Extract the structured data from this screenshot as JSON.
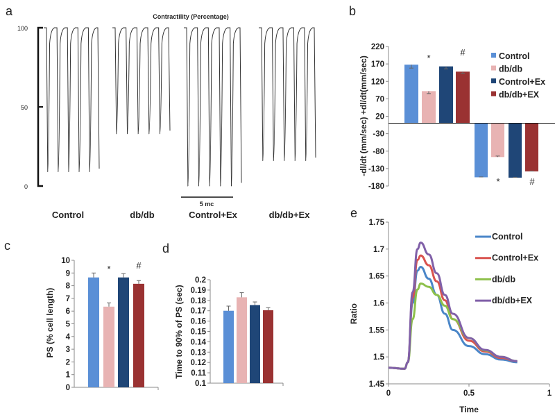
{
  "panels": {
    "a": "a",
    "b": "b",
    "c": "c",
    "d": "d",
    "e": "e"
  },
  "colors": {
    "control": "#5a8fd6",
    "dbdb": "#e8b3b3",
    "control_ex": "#1f4677",
    "dbdb_ex": "#9a3232"
  },
  "chart_data": [
    {
      "id": "a",
      "type": "line",
      "title": "Contractility  (Percentage)",
      "yticks": [
        "100",
        "50",
        "0"
      ],
      "ylim": [
        0,
        100
      ],
      "scale_bar": "5 mc",
      "groups": [
        {
          "name": "Control",
          "min_percent": 9,
          "beats": 5
        },
        {
          "name": "db/db",
          "min_percent": 33,
          "beats": 5
        },
        {
          "name": "Control+Ex",
          "min_percent": 0,
          "beats": 5
        },
        {
          "name": "db/db+Ex",
          "min_percent": 16,
          "beats": 5
        }
      ]
    },
    {
      "id": "b",
      "type": "bar",
      "ylabel": "-dl/dt (mm/sec)   +dl/dt(mm/sec)",
      "ylim": [
        -180,
        220
      ],
      "yticks": [
        "220",
        "170",
        "120",
        "70",
        "20",
        "-30",
        "-80",
        "-130",
        "-180"
      ],
      "legend": [
        "Control",
        "db/db",
        "Control+Ex",
        "db/db+EX"
      ],
      "legend_position": "top-right",
      "series_positive": [
        168,
        92,
        163,
        148
      ],
      "err_positive": [
        10,
        7,
        7,
        5
      ],
      "series_negative": [
        -155,
        -97,
        -156,
        -138
      ],
      "err_negative": [
        1,
        3,
        1,
        1
      ],
      "annotations": {
        "positive": [
          "",
          "*",
          "",
          "#"
        ],
        "negative": [
          "",
          "*",
          "",
          "#"
        ]
      }
    },
    {
      "id": "c",
      "type": "bar",
      "ylabel": "PS (% cell length)",
      "ylim": [
        0,
        10
      ],
      "yticks": [
        "0",
        "1",
        "2",
        "3",
        "4",
        "5",
        "6",
        "7",
        "8",
        "9",
        "10"
      ],
      "categories": [
        "Control",
        "db/db",
        "Control+Ex",
        "db/db+EX"
      ],
      "values": [
        8.65,
        6.35,
        8.65,
        8.15
      ],
      "errors": [
        0.35,
        0.3,
        0.3,
        0.25
      ],
      "annotations": [
        "",
        "*",
        "",
        "#"
      ]
    },
    {
      "id": "d",
      "type": "bar",
      "ylabel": "Time to 90% of PS (sec)",
      "ylim": [
        0.1,
        0.2
      ],
      "yticks": [
        "0.1",
        "0.11",
        "0.12",
        "0.13",
        "0.14",
        "0.15",
        "0.16",
        "0.17",
        "0.18",
        "0.19",
        "0.2"
      ],
      "categories": [
        "Control",
        "db/db",
        "Control+Ex",
        "db/db+EX"
      ],
      "values": [
        0.17,
        0.183,
        0.1755,
        0.1705
      ],
      "errors": [
        0.0045,
        0.0045,
        0.003,
        0.0025
      ]
    },
    {
      "id": "e",
      "type": "line",
      "xlabel": "Time",
      "ylabel": "Ratio",
      "xlim": [
        0,
        1
      ],
      "ylim": [
        1.45,
        1.75
      ],
      "xticks": [
        "0",
        "0.5",
        "1"
      ],
      "yticks": [
        "1.45",
        "1.5",
        "1.55",
        "1.6",
        "1.65",
        "1.7",
        "1.75"
      ],
      "x": [
        0,
        0.1,
        0.12,
        0.15,
        0.18,
        0.2,
        0.25,
        0.3,
        0.35,
        0.4,
        0.5,
        0.6,
        0.7,
        0.8
      ],
      "series": [
        {
          "name": "Control",
          "color": "#4a86c8",
          "values": [
            1.48,
            1.478,
            1.49,
            1.6,
            1.66,
            1.667,
            1.645,
            1.615,
            1.58,
            1.55,
            1.52,
            1.505,
            1.495,
            1.49
          ]
        },
        {
          "name": "Control+Ex",
          "color": "#d9534f",
          "values": [
            1.48,
            1.478,
            1.49,
            1.61,
            1.68,
            1.688,
            1.67,
            1.64,
            1.605,
            1.57,
            1.53,
            1.51,
            1.498,
            1.492
          ]
        },
        {
          "name": "db/db",
          "color": "#8dc04a",
          "values": [
            1.48,
            1.478,
            1.49,
            1.57,
            1.625,
            1.636,
            1.63,
            1.615,
            1.595,
            1.57,
            1.535,
            1.512,
            1.5,
            1.492
          ]
        },
        {
          "name": "db/db+EX",
          "color": "#8060a8",
          "values": [
            1.48,
            1.478,
            1.49,
            1.62,
            1.7,
            1.712,
            1.69,
            1.655,
            1.615,
            1.58,
            1.535,
            1.513,
            1.5,
            1.492
          ]
        }
      ],
      "legend_position": "top-right"
    }
  ]
}
